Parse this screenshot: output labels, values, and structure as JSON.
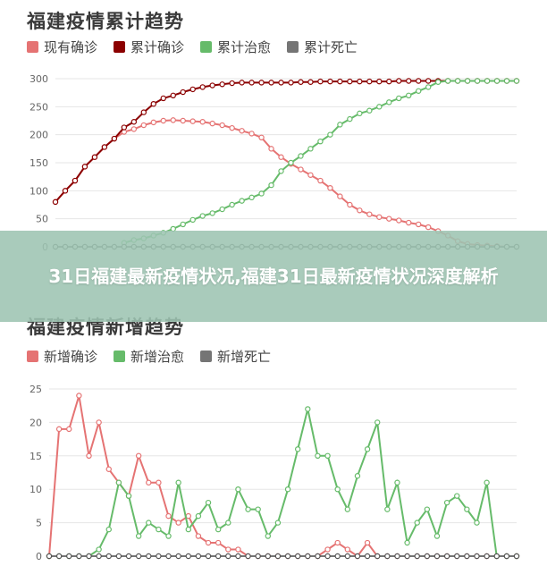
{
  "colors": {
    "current": "#e57373",
    "cumulative_confirmed": "#8b0000",
    "cured": "#66bb6a",
    "death": "#757575",
    "new_confirmed": "#e57373",
    "new_cured": "#66bb6a",
    "new_death": "#757575",
    "banner": "#9dc4b2"
  },
  "banner": {
    "text": "31日福建最新疫情状况,福建31日最新疫情状况深度解析"
  },
  "chart_data": [
    {
      "type": "line",
      "title": "福建疫情累计趋势",
      "ylim": [
        0,
        300
      ],
      "yticks": [
        "0",
        "50",
        "100",
        "150",
        "200",
        "250",
        "300"
      ],
      "grid": true,
      "legend_position": "top-left",
      "x": [
        0,
        1,
        2,
        3,
        4,
        5,
        6,
        7,
        8,
        9,
        10,
        11,
        12,
        13,
        14,
        15,
        16,
        17,
        18,
        19,
        20,
        21,
        22,
        23,
        24,
        25,
        26,
        27,
        28,
        29,
        30,
        31,
        32,
        33,
        34,
        35,
        36,
        37,
        38,
        39,
        40,
        41,
        42,
        43,
        44,
        45,
        46,
        47
      ],
      "series": [
        {
          "name": "现有确诊",
          "color_key": "current",
          "values": [
            80,
            100,
            118,
            143,
            160,
            178,
            193,
            205,
            210,
            217,
            222,
            225,
            226,
            225,
            224,
            223,
            220,
            217,
            212,
            207,
            202,
            195,
            175,
            160,
            148,
            138,
            128,
            118,
            105,
            90,
            75,
            65,
            58,
            53,
            50,
            47,
            43,
            40,
            35,
            28,
            20,
            10,
            5,
            3,
            2,
            1,
            0,
            0
          ]
        },
        {
          "name": "累计确诊",
          "color_key": "cumulative_confirmed",
          "values": [
            80,
            100,
            118,
            143,
            160,
            178,
            193,
            213,
            223,
            240,
            255,
            265,
            270,
            276,
            281,
            285,
            288,
            290,
            292,
            293,
            293,
            293,
            293,
            293,
            293,
            294,
            294,
            295,
            295,
            295,
            295,
            295,
            295,
            295,
            295,
            296,
            296,
            296,
            296,
            296,
            296,
            296,
            296,
            296,
            296,
            296,
            296,
            296
          ]
        },
        {
          "name": "累计治愈",
          "color_key": "cured",
          "values": [
            null,
            null,
            null,
            null,
            null,
            null,
            null,
            7,
            12,
            15,
            20,
            25,
            32,
            40,
            48,
            55,
            60,
            67,
            75,
            82,
            88,
            95,
            110,
            135,
            150,
            162,
            175,
            188,
            200,
            218,
            228,
            238,
            243,
            250,
            258,
            265,
            270,
            278,
            285,
            294,
            296,
            296,
            296,
            296,
            296,
            296,
            296,
            296
          ]
        },
        {
          "name": "累计死亡",
          "color_key": "death",
          "values": [
            0,
            0,
            0,
            0,
            0,
            0,
            0,
            0,
            0,
            0,
            0,
            0,
            0,
            0,
            0,
            0,
            0,
            0,
            0,
            0,
            0,
            0,
            0,
            0,
            0,
            0,
            0,
            0,
            0,
            0,
            0,
            0,
            0,
            0,
            0,
            0,
            0,
            0,
            0,
            0,
            0,
            0,
            0,
            0,
            0,
            0,
            0,
            0
          ]
        }
      ]
    },
    {
      "type": "line",
      "title": "福建疫情新增趋势",
      "ylim": [
        0,
        25
      ],
      "yticks": [
        "0",
        "5",
        "10",
        "15",
        "20",
        "25"
      ],
      "grid": true,
      "legend_position": "top-left",
      "x": [
        0,
        1,
        2,
        3,
        4,
        5,
        6,
        7,
        8,
        9,
        10,
        11,
        12,
        13,
        14,
        15,
        16,
        17,
        18,
        19,
        20,
        21,
        22,
        23,
        24,
        25,
        26,
        27,
        28,
        29,
        30,
        31,
        32,
        33,
        34,
        35,
        36,
        37,
        38,
        39,
        40,
        41,
        42,
        43,
        44,
        45,
        46,
        47
      ],
      "series": [
        {
          "name": "新增确诊",
          "color_key": "new_confirmed",
          "values": [
            0,
            19,
            19,
            24,
            15,
            20,
            13,
            11,
            9,
            15,
            11,
            11,
            6,
            5,
            6,
            3,
            2,
            2,
            1,
            1,
            0,
            0,
            0,
            0,
            0,
            0,
            0,
            0,
            1,
            2,
            1,
            0,
            2,
            0,
            0,
            0,
            0,
            0,
            0,
            0,
            0,
            0,
            0,
            0,
            0,
            0,
            0,
            0
          ]
        },
        {
          "name": "新增治愈",
          "color_key": "new_cured",
          "values": [
            0,
            0,
            0,
            0,
            0,
            1,
            4,
            11,
            9,
            3,
            5,
            4,
            3,
            11,
            4,
            6,
            8,
            4,
            5,
            10,
            7,
            7,
            3,
            5,
            10,
            16,
            22,
            15,
            15,
            10,
            7,
            12,
            16,
            20,
            7,
            11,
            2,
            5,
            7,
            3,
            8,
            9,
            7,
            5,
            11,
            0,
            0,
            0
          ]
        },
        {
          "name": "新增死亡",
          "color_key": "new_death",
          "values": [
            0,
            0,
            0,
            0,
            0,
            0,
            0,
            0,
            0,
            0,
            0,
            0,
            0,
            0,
            0,
            0,
            0,
            0,
            0,
            0,
            0,
            0,
            0,
            0,
            0,
            0,
            0,
            0,
            0,
            0,
            0,
            0,
            0,
            0,
            0,
            0,
            0,
            0,
            0,
            0,
            0,
            0,
            0,
            0,
            0,
            0,
            0,
            0
          ]
        }
      ]
    }
  ]
}
